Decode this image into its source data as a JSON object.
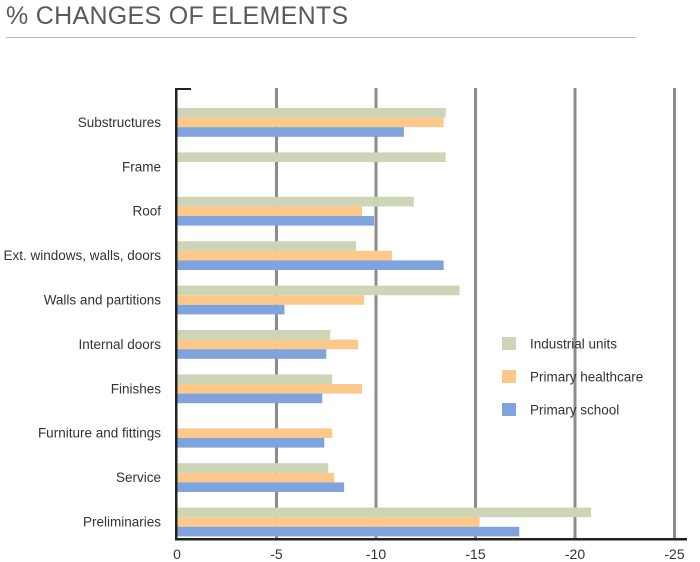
{
  "page": {
    "title": "% CHANGES OF ELEMENTS"
  },
  "chart_data": {
    "type": "bar",
    "orientation": "horizontal",
    "title": "% CHANGES OF ELEMENTS",
    "xlabel": "",
    "ylabel": "",
    "xlim": [
      0,
      -25
    ],
    "xticks": [
      0,
      -5,
      -10,
      -15,
      -20,
      -25
    ],
    "tick_labels": [
      "0",
      "-5",
      "-10",
      "-15",
      "-20",
      "-25"
    ],
    "grid": "vertical",
    "legend_position": "right",
    "categories": [
      "Substructures",
      "Frame",
      "Roof",
      "Ext. windows, walls, doors",
      "Walls and partitions",
      "Internal doors",
      "Finishes",
      "Furniture and fittings",
      "Service",
      "Preliminaries"
    ],
    "series": [
      {
        "name": "Industrial units",
        "color": "#cdd5b7",
        "values": [
          -13.5,
          -13.5,
          -11.9,
          -9.0,
          -14.2,
          -7.7,
          -7.8,
          null,
          -7.6,
          -20.8
        ]
      },
      {
        "name": "Primary healthcare",
        "color": "#fdc98b",
        "values": [
          -13.4,
          null,
          -9.3,
          -10.8,
          -9.4,
          -9.1,
          -9.3,
          -7.8,
          -7.9,
          -15.2
        ]
      },
      {
        "name": "Primary school",
        "color": "#7ea3dd",
        "values": [
          -11.4,
          null,
          -9.9,
          -13.4,
          -5.4,
          -7.5,
          -7.3,
          -7.4,
          -8.4,
          -17.2
        ]
      }
    ]
  }
}
